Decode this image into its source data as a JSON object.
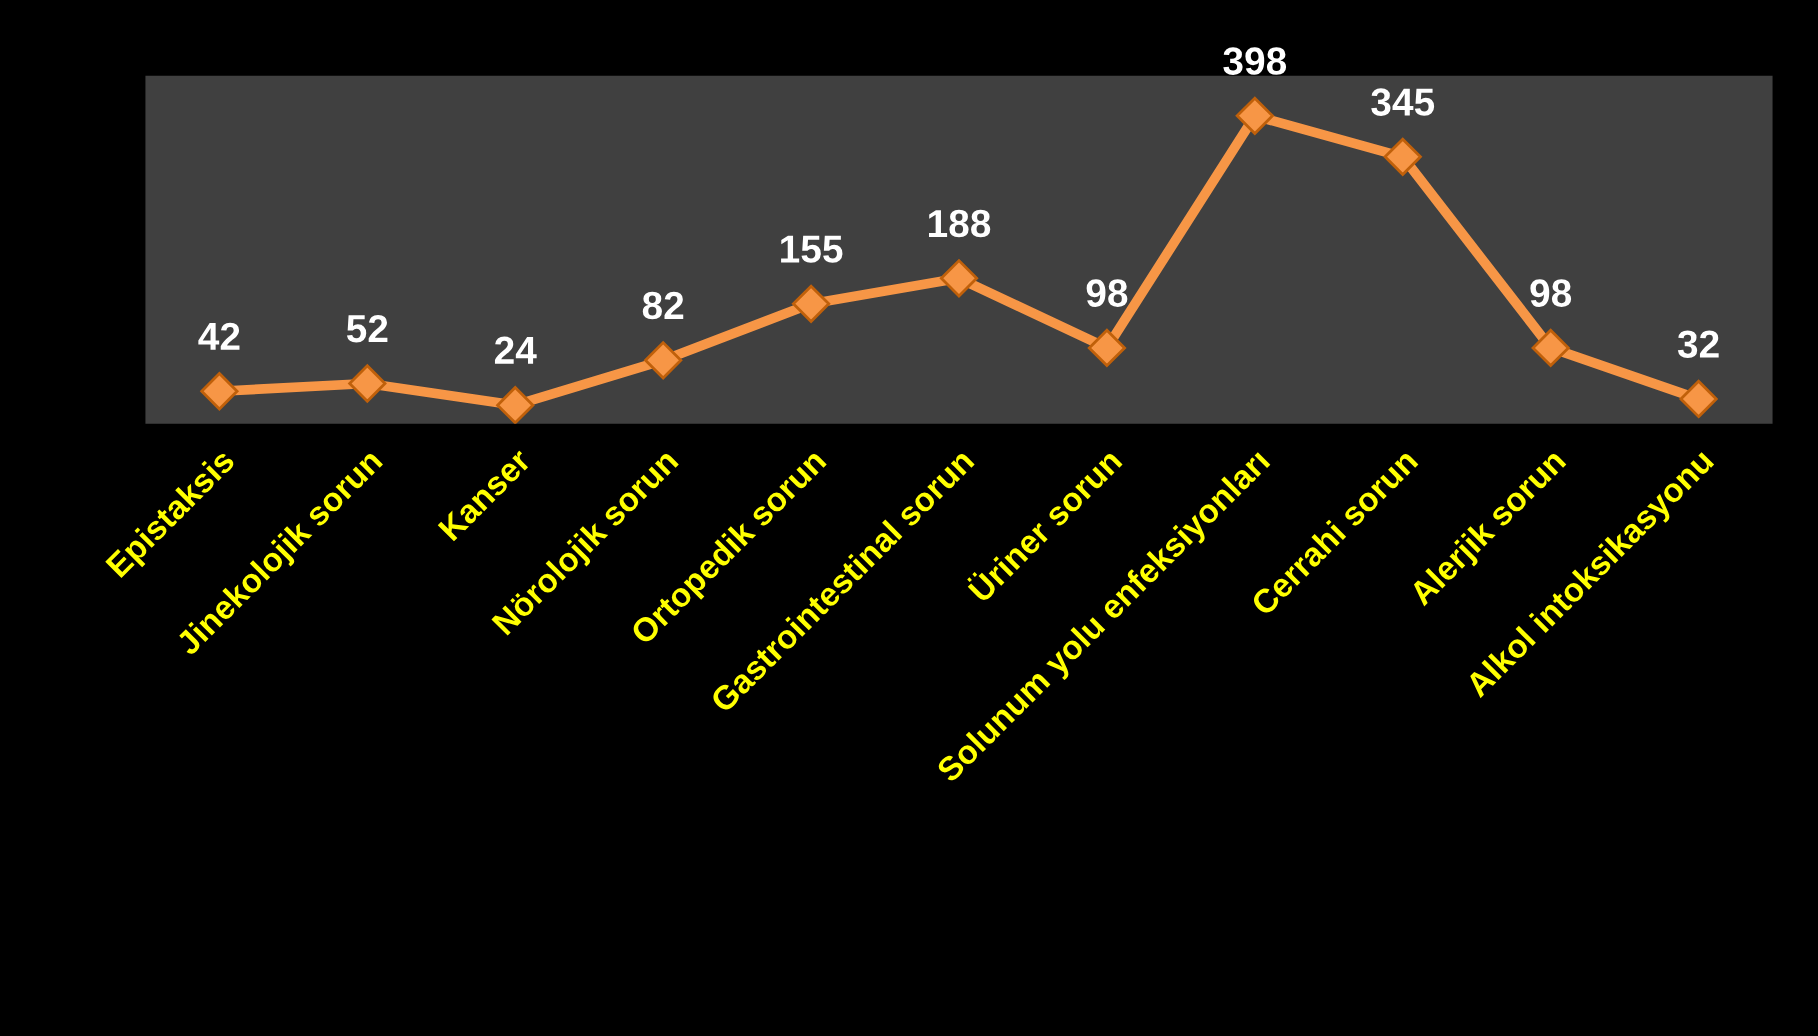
{
  "chart_data": {
    "type": "line",
    "categories": [
      "Epistaksis",
      "Jinekolojik sorun",
      "Kanser",
      "Nörolojik sorun",
      "Ortopedik sorun",
      "Gastrointestinal sorun",
      "Üriner sorun",
      "Solunum yolu enfeksiyonları",
      "Cerrahi sorun",
      "Alerjik sorun",
      "Alkol intoksikasyonu"
    ],
    "series": [
      {
        "color": "#f79646",
        "values": [
          42,
          52,
          24,
          82,
          155,
          188,
          98,
          398,
          345,
          98,
          32
        ]
      }
    ],
    "ylim": [
      0,
      450
    ],
    "data_labels": true,
    "marker": "diamond",
    "line_style": "solid",
    "grid": false,
    "legend": false
  }
}
